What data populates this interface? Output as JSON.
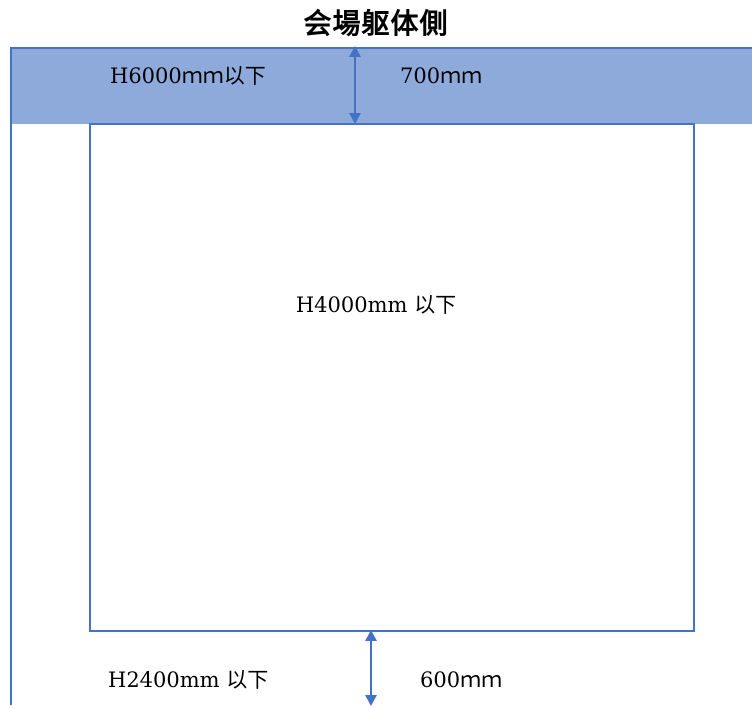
{
  "title": "会場躯体側",
  "top_band": {
    "height_limit": "H6000ｍｍ以下",
    "gap": "700ｍｍ"
  },
  "booth": {
    "height_limit": "H4000mm 以下"
  },
  "bottom": {
    "height_limit": "H2400mm 以下",
    "gap": "600ｍｍ"
  },
  "colors": {
    "band_fill": "#8eaadb",
    "line": "#4472c4"
  }
}
